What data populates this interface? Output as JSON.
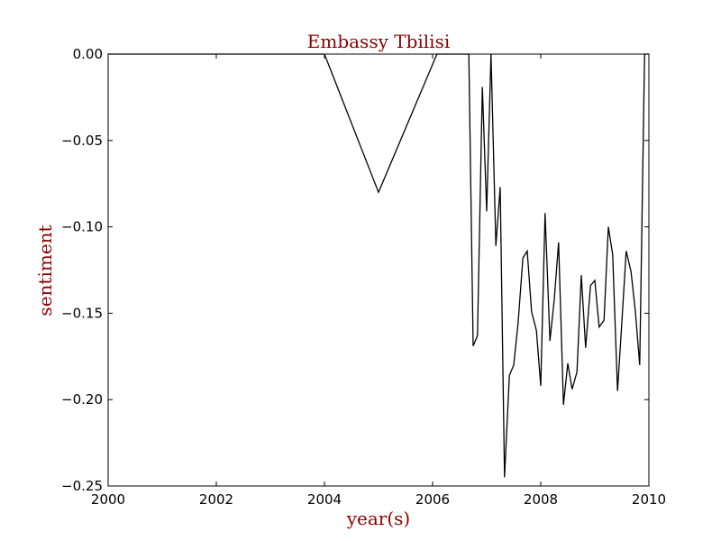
{
  "chart_data": {
    "type": "line",
    "title": "Embassy Tbilisi",
    "xlabel": "year(s)",
    "ylabel": "sentiment",
    "xlim": [
      2000,
      2010
    ],
    "ylim": [
      -0.25,
      0.0
    ],
    "grid": false,
    "line_color": "#000000",
    "text_color": "#8b0000",
    "x_ticks": [
      2000,
      2002,
      2004,
      2006,
      2008,
      2010
    ],
    "x_tick_labels": [
      "2000",
      "2002",
      "2004",
      "2006",
      "2008",
      "2010"
    ],
    "y_ticks": [
      0.0,
      -0.05,
      -0.1,
      -0.15,
      -0.2,
      -0.25
    ],
    "y_tick_labels": [
      "0.00",
      "−0.05",
      "−0.10",
      "−0.15",
      "−0.20",
      "−0.25"
    ],
    "series": [
      {
        "x": [
          2000.0,
          2004.0,
          2005.0,
          2006.08,
          2006.67,
          2006.75,
          2006.83,
          2006.92,
          2007.0,
          2007.08,
          2007.17,
          2007.25,
          2007.33,
          2007.42,
          2007.5,
          2007.58,
          2007.67,
          2007.75,
          2007.83,
          2007.92,
          2008.0,
          2008.08,
          2008.17,
          2008.25,
          2008.33,
          2008.42,
          2008.5,
          2008.58,
          2008.67,
          2008.75,
          2008.83,
          2008.92,
          2009.0,
          2009.08,
          2009.17,
          2009.25,
          2009.33,
          2009.42,
          2009.5,
          2009.58,
          2009.67,
          2009.75,
          2009.83,
          2009.92,
          2010.0
        ],
        "y": [
          0.0,
          0.0,
          -0.08,
          0.0,
          0.0,
          -0.169,
          -0.163,
          -0.019,
          -0.091,
          0.0,
          -0.111,
          -0.077,
          -0.245,
          -0.186,
          -0.18,
          -0.156,
          -0.118,
          -0.114,
          -0.149,
          -0.16,
          -0.192,
          -0.092,
          -0.166,
          -0.142,
          -0.109,
          -0.203,
          -0.179,
          -0.194,
          -0.184,
          -0.128,
          -0.17,
          -0.134,
          -0.131,
          -0.158,
          -0.154,
          -0.1,
          -0.116,
          -0.195,
          -0.155,
          -0.114,
          -0.126,
          -0.149,
          -0.18,
          0.0,
          0.0
        ]
      }
    ]
  }
}
